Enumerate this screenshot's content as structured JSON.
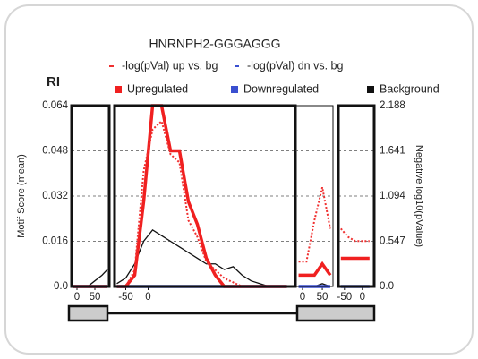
{
  "chart_data": {
    "type": "line",
    "title": "HNRNPH2-GGGAGGG",
    "panel_label": "RI",
    "ylabel": "Motif Score (mean)",
    "y2label": "Negative log10(pValue)",
    "ylim": [
      0,
      0.064
    ],
    "yticks": [
      {
        "value": 0,
        "label": "0.0"
      },
      0.016,
      0.032,
      0.048,
      0.064
    ],
    "y2lim": [
      0,
      2.188
    ],
    "y2ticks": [
      {
        "value": 0,
        "label": "0.0"
      },
      0.547,
      1.094,
      1.641,
      2.188
    ],
    "grid": true,
    "series": [
      {
        "name": "-log(pVal) up vs. bg",
        "color": "#f03030",
        "axis": "y2",
        "style": "dotted"
      },
      {
        "name": "-log(pVal) dn vs. bg",
        "color": "#3a4fd0",
        "axis": "y2",
        "style": "dotted"
      },
      {
        "name": "Upregulated",
        "color": "#f02020",
        "style": "solid"
      },
      {
        "name": "Downregulated",
        "color": "#3a4fd0",
        "style": "solid"
      },
      {
        "name": "Background",
        "color": "#111111",
        "style": "thin"
      }
    ],
    "panels": [
      {
        "xlim": [
          -15,
          90
        ],
        "xticks": [
          0,
          50
        ],
        "x": [
          -10,
          10,
          30,
          50,
          70,
          85
        ],
        "values": [
          [
            0,
            0,
            0,
            0,
            0,
            0
          ],
          [
            0,
            0,
            0,
            0,
            0,
            0
          ],
          [
            0,
            0,
            0,
            0,
            0,
            0
          ],
          [
            0,
            0,
            0,
            0,
            0,
            0
          ],
          [
            0,
            0,
            0,
            0.002,
            0.004,
            0.006
          ]
        ]
      },
      {
        "xlim": [
          -75,
          329
        ],
        "xticks": [
          -50,
          0
        ],
        "x": [
          -70,
          -50,
          -30,
          -10,
          10,
          30,
          50,
          70,
          90,
          110,
          130,
          150,
          170,
          190,
          210,
          230,
          250,
          270,
          290,
          310
        ],
        "values": [
          [
            0,
            0,
            0.2,
            1.4,
            1.9,
            2.0,
            1.6,
            1.5,
            0.8,
            0.6,
            0.3,
            0.2,
            0.1,
            0.05,
            0,
            0,
            0,
            0,
            0,
            0
          ],
          [
            0,
            0,
            0,
            0,
            0,
            0,
            0,
            0,
            0,
            0,
            0,
            0,
            0,
            0,
            0,
            0,
            0,
            0,
            0,
            0
          ],
          [
            0,
            0,
            0.004,
            0.03,
            0.064,
            0.064,
            0.048,
            0.048,
            0.03,
            0.022,
            0.01,
            0.004,
            0,
            0,
            0,
            0,
            0,
            0,
            0,
            0
          ],
          [
            0,
            0,
            0,
            0,
            0,
            0,
            0,
            0,
            0,
            0,
            0,
            0,
            0,
            0,
            0,
            0,
            0,
            0,
            0,
            0
          ],
          [
            0.001,
            0.003,
            0.008,
            0.016,
            0.02,
            0.018,
            0.016,
            0.014,
            0.012,
            0.01,
            0.008,
            0.008,
            0.006,
            0.007,
            0.004,
            0.002,
            0.001,
            0,
            0,
            0
          ]
        ]
      },
      {
        "xlim": [
          -18,
          77
        ],
        "xticks": [
          0,
          50
        ],
        "x": [
          -10,
          10,
          30,
          50,
          70
        ],
        "values": [
          [
            0.3,
            0.3,
            0.8,
            1.2,
            0.7
          ],
          [
            0,
            0,
            0,
            0,
            0
          ],
          [
            0.004,
            0.004,
            0.004,
            0.008,
            0.004
          ],
          [
            0,
            0,
            0,
            0,
            0
          ],
          [
            0,
            0,
            0,
            0.001,
            0
          ]
        ]
      },
      {
        "xlim": [
          -67,
          33
        ],
        "xticks": [
          -50,
          0
        ],
        "x": [
          -60,
          -40,
          -20,
          0,
          20
        ],
        "values": [
          [
            0.7,
            0.6,
            0.55,
            0.55,
            0.55
          ],
          [
            0,
            0,
            0,
            0,
            0
          ],
          [
            0.01,
            0.01,
            0.01,
            0.01,
            0.01
          ],
          [
            0,
            0,
            0,
            0,
            0
          ],
          [
            0,
            0,
            0,
            0,
            0
          ]
        ]
      }
    ]
  }
}
